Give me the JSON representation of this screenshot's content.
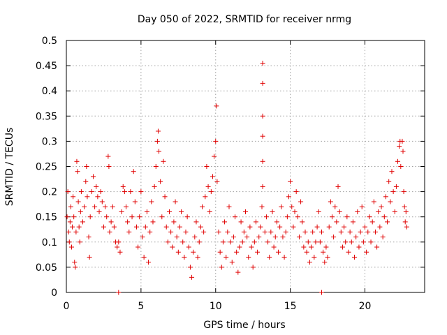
{
  "chart_data": {
    "type": "scatter",
    "title": "Day 050 of 2022, SRMTID for receiver nrmg",
    "xlabel": "GPS time / hours",
    "ylabel": "SRMTID / TECUs",
    "xlim": [
      0,
      24
    ],
    "ylim": [
      0,
      0.5
    ],
    "xticks": [
      0,
      5,
      10,
      15,
      20
    ],
    "xtick_labels": [
      "0",
      "5",
      "10",
      "15",
      "20"
    ],
    "yticks": [
      0,
      0.05,
      0.1,
      0.15,
      0.2,
      0.25,
      0.3,
      0.35,
      0.4,
      0.45,
      0.5
    ],
    "ytick_labels": [
      "0",
      "0.05",
      "0.1",
      "0.15",
      "0.2",
      "0.25",
      "0.3",
      "0.35",
      "0.4",
      "0.45",
      "0.5"
    ],
    "grid": true,
    "marker": "plus",
    "color": "#e00000",
    "series": [
      {
        "name": "SRMTID",
        "points": [
          [
            0.05,
            0.15
          ],
          [
            0.1,
            0.2
          ],
          [
            0.15,
            0.12
          ],
          [
            0.2,
            0.1
          ],
          [
            0.25,
            0.14
          ],
          [
            0.3,
            0.17
          ],
          [
            0.35,
            0.09
          ],
          [
            0.4,
            0.13
          ],
          [
            0.45,
            0.19
          ],
          [
            0.5,
            0.15
          ],
          [
            0.55,
            0.06
          ],
          [
            0.6,
            0.05
          ],
          [
            0.65,
            0.12
          ],
          [
            0.7,
            0.26
          ],
          [
            0.75,
            0.24
          ],
          [
            0.8,
            0.18
          ],
          [
            0.85,
            0.13
          ],
          [
            0.9,
            0.1
          ],
          [
            0.95,
            0.16
          ],
          [
            1.0,
            0.2
          ],
          [
            1.1,
            0.14
          ],
          [
            1.2,
            0.17
          ],
          [
            1.3,
            0.22
          ],
          [
            1.35,
            0.25
          ],
          [
            1.4,
            0.19
          ],
          [
            1.5,
            0.11
          ],
          [
            1.55,
            0.07
          ],
          [
            1.6,
            0.15
          ],
          [
            1.7,
            0.2
          ],
          [
            1.8,
            0.23
          ],
          [
            1.9,
            0.17
          ],
          [
            2.0,
            0.21
          ],
          [
            2.1,
            0.19
          ],
          [
            2.2,
            0.16
          ],
          [
            2.3,
            0.2
          ],
          [
            2.4,
            0.18
          ],
          [
            2.5,
            0.13
          ],
          [
            2.6,
            0.17
          ],
          [
            2.7,
            0.15
          ],
          [
            2.8,
            0.27
          ],
          [
            2.85,
            0.25
          ],
          [
            2.9,
            0.12
          ],
          [
            3.0,
            0.14
          ],
          [
            3.1,
            0.17
          ],
          [
            3.2,
            0.13
          ],
          [
            3.3,
            0.1
          ],
          [
            3.4,
            0.09
          ],
          [
            3.5,
            0.1
          ],
          [
            3.6,
            0.08
          ],
          [
            3.7,
            0.16
          ],
          [
            3.8,
            0.21
          ],
          [
            3.9,
            0.2
          ],
          [
            4.0,
            0.17
          ],
          [
            4.1,
            0.14
          ],
          [
            4.2,
            0.12
          ],
          [
            4.3,
            0.2
          ],
          [
            4.4,
            0.15
          ],
          [
            4.5,
            0.24
          ],
          [
            4.6,
            0.18
          ],
          [
            4.7,
            0.13
          ],
          [
            4.8,
            0.09
          ],
          [
            4.9,
            0.15
          ],
          [
            5.0,
            0.2
          ],
          [
            5.1,
            0.11
          ],
          [
            5.2,
            0.07
          ],
          [
            5.3,
            0.13
          ],
          [
            5.4,
            0.16
          ],
          [
            5.5,
            0.06
          ],
          [
            5.6,
            0.12
          ],
          [
            5.7,
            0.18
          ],
          [
            5.8,
            0.14
          ],
          [
            5.9,
            0.21
          ],
          [
            6.0,
            0.25
          ],
          [
            6.1,
            0.3
          ],
          [
            6.15,
            0.32
          ],
          [
            6.2,
            0.28
          ],
          [
            6.3,
            0.22
          ],
          [
            6.4,
            0.15
          ],
          [
            6.5,
            0.26
          ],
          [
            6.6,
            0.19
          ],
          [
            6.7,
            0.13
          ],
          [
            6.8,
            0.1
          ],
          [
            6.9,
            0.16
          ],
          [
            7.0,
            0.12
          ],
          [
            7.1,
            0.09
          ],
          [
            7.2,
            0.14
          ],
          [
            7.3,
            0.18
          ],
          [
            7.4,
            0.11
          ],
          [
            7.5,
            0.08
          ],
          [
            7.6,
            0.13
          ],
          [
            7.7,
            0.16
          ],
          [
            7.8,
            0.1
          ],
          [
            7.9,
            0.07
          ],
          [
            8.0,
            0.12
          ],
          [
            8.1,
            0.15
          ],
          [
            8.2,
            0.09
          ],
          [
            8.3,
            0.05
          ],
          [
            8.4,
            0.03
          ],
          [
            8.5,
            0.08
          ],
          [
            8.6,
            0.11
          ],
          [
            8.7,
            0.14
          ],
          [
            8.8,
            0.07
          ],
          [
            8.9,
            0.1
          ],
          [
            9.0,
            0.13
          ],
          [
            9.1,
            0.17
          ],
          [
            9.2,
            0.12
          ],
          [
            9.3,
            0.19
          ],
          [
            9.4,
            0.25
          ],
          [
            9.5,
            0.21
          ],
          [
            9.6,
            0.16
          ],
          [
            9.7,
            0.2
          ],
          [
            9.8,
            0.23
          ],
          [
            9.9,
            0.27
          ],
          [
            10.0,
            0.3
          ],
          [
            10.05,
            0.37
          ],
          [
            10.1,
            0.22
          ],
          [
            10.2,
            0.12
          ],
          [
            10.3,
            0.08
          ],
          [
            10.4,
            0.05
          ],
          [
            10.5,
            0.1
          ],
          [
            10.6,
            0.14
          ],
          [
            10.7,
            0.07
          ],
          [
            10.8,
            0.12
          ],
          [
            10.9,
            0.17
          ],
          [
            11.0,
            0.1
          ],
          [
            11.1,
            0.06
          ],
          [
            11.2,
            0.11
          ],
          [
            11.3,
            0.15
          ],
          [
            11.4,
            0.08
          ],
          [
            11.5,
            0.04
          ],
          [
            11.6,
            0.09
          ],
          [
            11.7,
            0.14
          ],
          [
            11.8,
            0.1
          ],
          [
            11.9,
            0.12
          ],
          [
            12.0,
            0.16
          ],
          [
            12.1,
            0.11
          ],
          [
            12.2,
            0.07
          ],
          [
            12.3,
            0.13
          ],
          [
            12.4,
            0.09
          ],
          [
            12.5,
            0.05
          ],
          [
            12.6,
            0.1
          ],
          [
            12.7,
            0.14
          ],
          [
            12.8,
            0.08
          ],
          [
            12.9,
            0.11
          ],
          [
            13.0,
            0.13
          ],
          [
            13.1,
            0.17
          ],
          [
            13.15,
            0.21
          ],
          [
            13.15,
            0.26
          ],
          [
            13.15,
            0.31
          ],
          [
            13.15,
            0.35
          ],
          [
            13.15,
            0.415
          ],
          [
            13.15,
            0.455
          ],
          [
            13.3,
            0.12
          ],
          [
            13.4,
            0.15
          ],
          [
            13.5,
            0.1
          ],
          [
            13.6,
            0.07
          ],
          [
            13.7,
            0.12
          ],
          [
            13.8,
            0.16
          ],
          [
            13.9,
            0.09
          ],
          [
            14.0,
            0.11
          ],
          [
            14.1,
            0.14
          ],
          [
            14.2,
            0.08
          ],
          [
            14.3,
            0.13
          ],
          [
            14.4,
            0.17
          ],
          [
            14.5,
            0.11
          ],
          [
            14.6,
            0.07
          ],
          [
            14.7,
            0.12
          ],
          [
            14.8,
            0.15
          ],
          [
            14.9,
            0.19
          ],
          [
            15.0,
            0.22
          ],
          [
            15.1,
            0.17
          ],
          [
            15.2,
            0.13
          ],
          [
            15.3,
            0.16
          ],
          [
            15.4,
            0.2
          ],
          [
            15.5,
            0.15
          ],
          [
            15.6,
            0.11
          ],
          [
            15.7,
            0.18
          ],
          [
            15.8,
            0.14
          ],
          [
            15.9,
            0.09
          ],
          [
            16.0,
            0.12
          ],
          [
            16.1,
            0.08
          ],
          [
            16.2,
            0.1
          ],
          [
            16.3,
            0.06
          ],
          [
            16.4,
            0.09
          ],
          [
            16.5,
            0.12
          ],
          [
            16.6,
            0.07
          ],
          [
            16.7,
            0.1
          ],
          [
            16.8,
            0.13
          ],
          [
            16.9,
            0.16
          ],
          [
            17.0,
            0.1
          ],
          [
            17.1,
            0.12
          ],
          [
            17.2,
            0.08
          ],
          [
            17.3,
            0.06
          ],
          [
            17.4,
            0.09
          ],
          [
            17.5,
            0.07
          ],
          [
            17.6,
            0.13
          ],
          [
            17.7,
            0.18
          ],
          [
            17.8,
            0.15
          ],
          [
            17.9,
            0.11
          ],
          [
            18.0,
            0.17
          ],
          [
            18.1,
            0.14
          ],
          [
            18.2,
            0.21
          ],
          [
            18.3,
            0.16
          ],
          [
            18.4,
            0.12
          ],
          [
            18.5,
            0.09
          ],
          [
            18.6,
            0.13
          ],
          [
            18.7,
            0.1
          ],
          [
            18.8,
            0.15
          ],
          [
            18.9,
            0.08
          ],
          [
            19.0,
            0.12
          ],
          [
            19.1,
            0.1
          ],
          [
            19.2,
            0.14
          ],
          [
            19.3,
            0.07
          ],
          [
            19.4,
            0.11
          ],
          [
            19.5,
            0.16
          ],
          [
            19.6,
            0.09
          ],
          [
            19.7,
            0.12
          ],
          [
            19.8,
            0.17
          ],
          [
            19.9,
            0.1
          ],
          [
            20.0,
            0.13
          ],
          [
            20.1,
            0.08
          ],
          [
            20.2,
            0.12
          ],
          [
            20.3,
            0.15
          ],
          [
            20.4,
            0.1
          ],
          [
            20.5,
            0.14
          ],
          [
            20.6,
            0.18
          ],
          [
            20.7,
            0.12
          ],
          [
            20.8,
            0.09
          ],
          [
            20.9,
            0.16
          ],
          [
            21.0,
            0.13
          ],
          [
            21.1,
            0.17
          ],
          [
            21.2,
            0.11
          ],
          [
            21.3,
            0.15
          ],
          [
            21.4,
            0.19
          ],
          [
            21.5,
            0.14
          ],
          [
            21.6,
            0.22
          ],
          [
            21.7,
            0.18
          ],
          [
            21.8,
            0.24
          ],
          [
            21.9,
            0.2
          ],
          [
            22.0,
            0.16
          ],
          [
            22.1,
            0.21
          ],
          [
            22.2,
            0.26
          ],
          [
            22.3,
            0.29
          ],
          [
            22.35,
            0.3
          ],
          [
            22.4,
            0.25
          ],
          [
            22.5,
            0.3
          ],
          [
            22.55,
            0.28
          ],
          [
            22.6,
            0.2
          ],
          [
            22.65,
            0.17
          ],
          [
            22.7,
            0.14
          ],
          [
            22.75,
            0.16
          ],
          [
            22.8,
            0.13
          ],
          [
            3.5,
            0.0
          ],
          [
            17.1,
            0.0
          ]
        ]
      }
    ]
  }
}
